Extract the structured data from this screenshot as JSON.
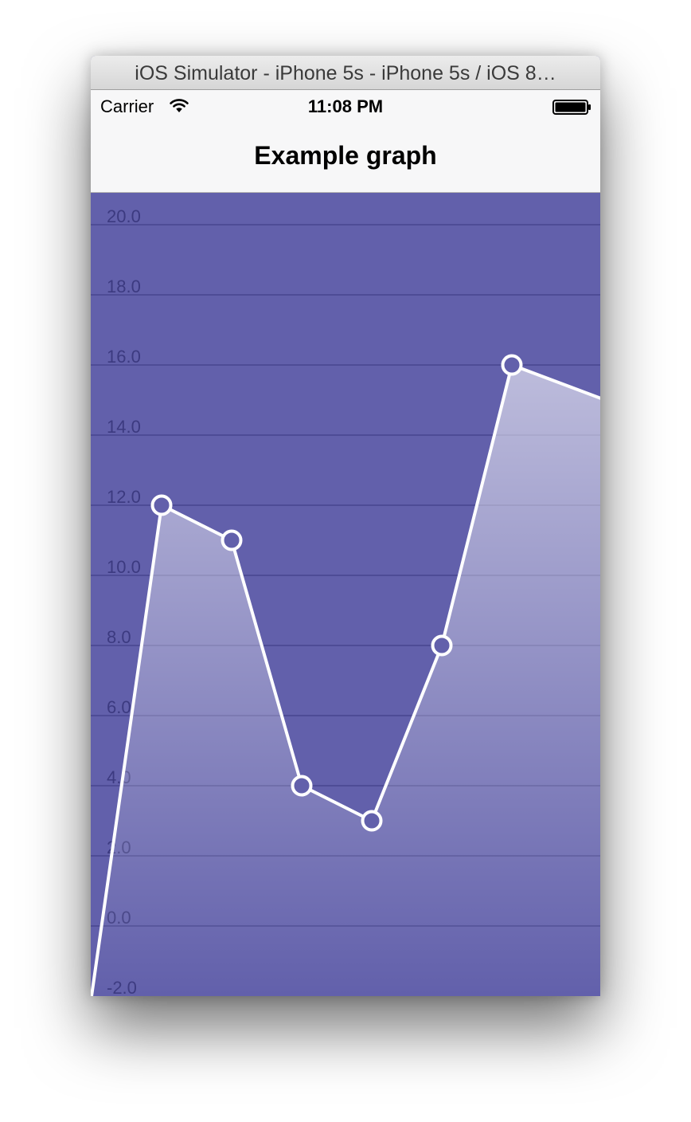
{
  "window": {
    "title": "iOS Simulator - iPhone 5s - iPhone 5s / iOS 8…"
  },
  "status_bar": {
    "carrier": "Carrier",
    "time": "11:08 PM",
    "icons": [
      "wifi-icon",
      "battery-icon"
    ]
  },
  "nav_bar": {
    "title": "Example graph"
  },
  "colors": {
    "graph_background": "#6260ab",
    "line": "#ffffff",
    "grid": "#4e4c96",
    "tick_label": "#3c3a80"
  },
  "chart_data": {
    "type": "line",
    "title": "",
    "xlabel": "",
    "ylabel": "",
    "ylim": [
      -2,
      21
    ],
    "y_ticks": [
      "20.0",
      "18.0",
      "16.0",
      "14.0",
      "12.0",
      "10.0",
      "8.0",
      "6.0",
      "4.0",
      "2.0",
      "0.0",
      "-2.0"
    ],
    "y_tick_values": [
      20,
      18,
      16,
      14,
      12,
      10,
      8,
      6,
      4,
      2,
      0,
      -2
    ],
    "grid": true,
    "fill_under_line": true,
    "x": [
      0,
      1,
      2,
      3,
      4,
      5,
      6,
      7,
      7.375
    ],
    "series": [
      {
        "values": [
          -2,
          12,
          11,
          4,
          3,
          8,
          16,
          15.25,
          15.25
        ],
        "point_markers_from_index": 1,
        "point_markers_to_index": 6
      }
    ]
  }
}
